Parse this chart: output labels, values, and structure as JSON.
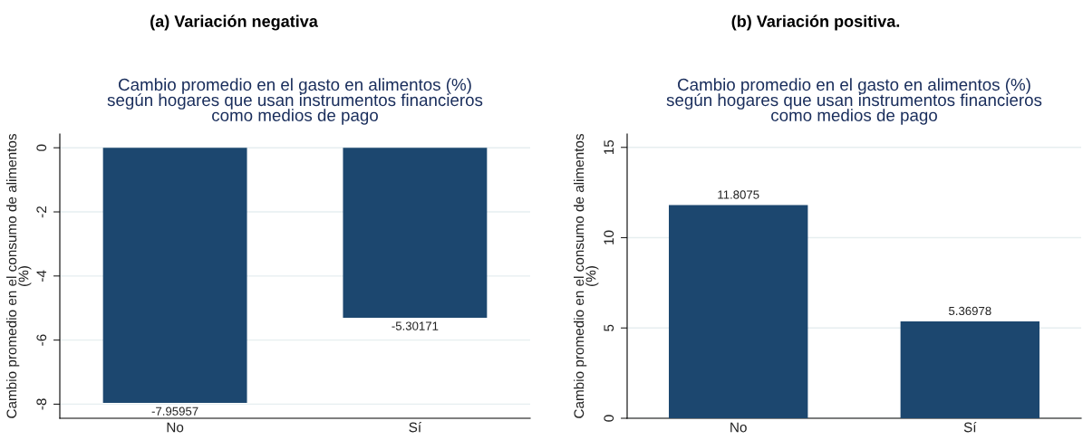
{
  "chart_data": [
    {
      "type": "bar",
      "title": "(a) Variación negativa",
      "subtitle": "Cambio promedio en el gasto en alimentos (%)\nsegún hogares que usan instrumentos financieros\ncomo medios de pago",
      "ylabel": "Cambio promedio en el consumo de alimentos\n(%)",
      "categories": [
        "No",
        "Sí"
      ],
      "values": [
        -7.95957,
        -5.30171
      ],
      "color": "#1c476f",
      "ylim": [
        -8.44,
        0.43
      ],
      "yticks": [
        -8,
        -6,
        -4,
        -2,
        0
      ],
      "grid": "y",
      "data_labels": true
    },
    {
      "type": "bar",
      "title": "(b) Variación positiva.",
      "subtitle": "Cambio promedio en el gasto en alimentos (%)\nsegún hogares que usan instrumentos financieros\ncomo medios de pago",
      "ylabel": "Cambio promedio en el consumo de alimentos\n(%)",
      "categories": [
        "No",
        "Sí"
      ],
      "values": [
        11.8075,
        5.36978
      ],
      "color": "#1c476f",
      "ylim": [
        0,
        15.74
      ],
      "yticks": [
        0,
        5,
        10,
        15
      ],
      "grid": "y",
      "data_labels": true
    }
  ]
}
